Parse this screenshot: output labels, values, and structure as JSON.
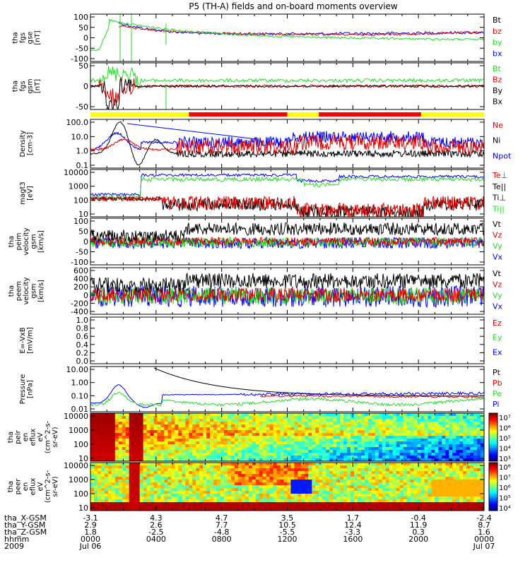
{
  "title": "P5 (TH-A) fields and on-board moments overview",
  "colors": {
    "black": "#000000",
    "red": "#e00000",
    "green": "#22dd22",
    "blue": "#0000ee",
    "yellow": "#ffff00",
    "bar_red": "#ff0000"
  },
  "chart_data": [
    {
      "type": "line",
      "id": "fgs_gse",
      "ylabel": [
        "tha",
        "fgs",
        "gse",
        "[nT]"
      ],
      "yticks": [
        "100",
        "50",
        "0",
        "-50",
        "-100"
      ],
      "ylim": [
        -100,
        100
      ],
      "legend": [
        {
          "name": "Bt",
          "color": "black"
        },
        {
          "name": "bz",
          "color": "red"
        },
        {
          "name": "by",
          "color": "green"
        },
        {
          "name": "bx",
          "color": "blue"
        }
      ]
    },
    {
      "type": "line",
      "id": "fgs_gsm",
      "ylabel": [
        "tha",
        "fgs",
        "gsm",
        "[nT]"
      ],
      "yticks": [
        "50",
        "0",
        "-50"
      ],
      "ylim": [
        -100,
        100
      ],
      "legend": [
        {
          "name": "Bt",
          "color": "green"
        },
        {
          "name": "Bz",
          "color": "red"
        },
        {
          "name": "By",
          "color": "black"
        },
        {
          "name": "Bx",
          "color": "black"
        }
      ]
    },
    {
      "type": "bar",
      "id": "mode_bar",
      "segments": [
        {
          "start": 0.0,
          "end": 0.25,
          "color": "yellow"
        },
        {
          "start": 0.25,
          "end": 0.5,
          "color": "bar_red"
        },
        {
          "start": 0.5,
          "end": 0.58,
          "color": "yellow"
        },
        {
          "start": 0.58,
          "end": 0.84,
          "color": "bar_red"
        },
        {
          "start": 0.84,
          "end": 1.0,
          "color": "yellow"
        }
      ]
    },
    {
      "type": "line",
      "id": "density",
      "scale": "log",
      "ylabel": [
        "Density",
        "[cm-3]"
      ],
      "yticks": [
        "100.0",
        "10.0",
        "1.0",
        "0.1"
      ],
      "legend": [
        {
          "name": "Ne",
          "color": "red"
        },
        {
          "name": "Ni",
          "color": "black"
        },
        {
          "name": "Npot",
          "color": "blue"
        }
      ]
    },
    {
      "type": "line",
      "id": "temperature",
      "scale": "log",
      "ylabel": [
        "magt3",
        "[eV]"
      ],
      "yticks": [
        "10000",
        "1000",
        "100",
        "10"
      ],
      "legend": [
        {
          "name": "Te⊥",
          "color": "red"
        },
        {
          "name": "Te||",
          "color": "black"
        },
        {
          "name": "Ti⊥",
          "color": "black"
        },
        {
          "name": "Ti||",
          "color": "green"
        }
      ]
    },
    {
      "type": "line",
      "id": "peim_velocity",
      "ylabel": [
        "tha",
        "peim",
        "velocity",
        "gsm",
        "[km/s]"
      ],
      "yticks": [
        "100",
        "50",
        "0",
        "-50",
        "-100"
      ],
      "ylim": [
        -100,
        100
      ],
      "legend": [
        {
          "name": "Vt",
          "color": "black"
        },
        {
          "name": "Vz",
          "color": "red"
        },
        {
          "name": "Vy",
          "color": "green"
        },
        {
          "name": "Vx",
          "color": "blue"
        }
      ]
    },
    {
      "type": "line",
      "id": "peem_velocity",
      "ylabel": [
        "tha",
        "peem",
        "velocity",
        "gsm",
        "[km/s]"
      ],
      "yticks": [
        "600",
        "400",
        "200",
        "0",
        "-200",
        "-400"
      ],
      "ylim": [
        -400,
        600
      ],
      "legend": [
        {
          "name": "Vt",
          "color": "black"
        },
        {
          "name": "Vz",
          "color": "red"
        },
        {
          "name": "Vy",
          "color": "green"
        },
        {
          "name": "Vx",
          "color": "blue"
        }
      ]
    },
    {
      "type": "line",
      "id": "efield",
      "ylabel": [
        "E=-VxB",
        "[mV/m]"
      ],
      "yticks": [
        "1.0",
        "0.8",
        "0.6",
        "0.4",
        "0.2",
        "0.0"
      ],
      "ylim": [
        0,
        1
      ],
      "legend": [
        {
          "name": "Ez",
          "color": "red"
        },
        {
          "name": "Ey",
          "color": "green"
        },
        {
          "name": "Ex",
          "color": "blue"
        }
      ]
    },
    {
      "type": "line",
      "id": "pressure",
      "scale": "log",
      "ylabel": [
        "Pressure",
        "[nPa]"
      ],
      "yticks": [
        "10.00",
        "1.00",
        "0.10",
        "0.01"
      ],
      "legend": [
        {
          "name": "Pt",
          "color": "black"
        },
        {
          "name": "Pb",
          "color": "red"
        },
        {
          "name": "Pe",
          "color": "green"
        },
        {
          "name": "Pi",
          "color": "blue"
        }
      ]
    },
    {
      "type": "heatmap",
      "id": "peir_eflux",
      "scale": "log",
      "ylabel": [
        "tha",
        "peir",
        "en",
        "eflux",
        "eV",
        "(cm^2-s-",
        "sr-eV)"
      ],
      "yticks": [
        "10000",
        "1000",
        "100",
        "10"
      ],
      "colorbar_ticks": [
        "10⁷",
        "10⁶",
        "10⁵",
        "10⁴",
        "10³"
      ]
    },
    {
      "type": "heatmap",
      "id": "peer_eflux",
      "scale": "log",
      "ylabel": [
        "tha",
        "peer",
        "en",
        "eflux",
        "eV",
        "(cm^2-s-",
        "sr-eV)"
      ],
      "yticks": [
        "10000",
        "1000",
        "100",
        "10"
      ],
      "colorbar_ticks": [
        "10⁸",
        "10⁷",
        "10⁶",
        "10⁵",
        "10⁴"
      ]
    }
  ],
  "xaxis": {
    "row_labels": [
      "tha_X-GSM",
      "tha_Y-GSM",
      "tha_Z-GSM",
      "hhmm",
      "2009"
    ],
    "columns": [
      [
        "-3.1",
        "2.9",
        "1.8",
        "0000",
        "Jul 06"
      ],
      [
        "4.3",
        "2.6",
        "-2.5",
        "0400",
        ""
      ],
      [
        "4.7",
        "7.7",
        "-4.8",
        "0800",
        ""
      ],
      [
        "3.5",
        "10.5",
        "-5.5",
        "1200",
        ""
      ],
      [
        "1.7",
        "12.4",
        "-3.3",
        "1600",
        ""
      ],
      [
        "-0.4",
        "11.9",
        "0.3",
        "2000",
        ""
      ],
      [
        "-2.4",
        "8.7",
        "1.6",
        "0000",
        "Jul 07"
      ]
    ]
  }
}
